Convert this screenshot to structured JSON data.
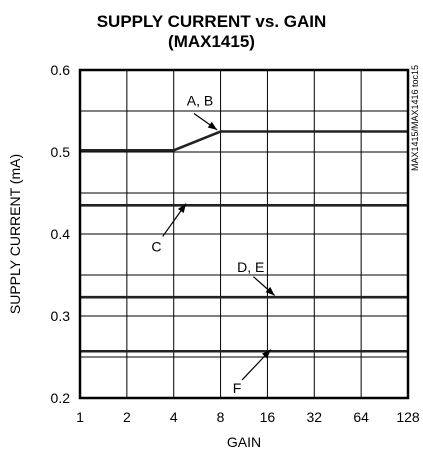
{
  "chart_data": {
    "type": "line",
    "title": "SUPPLY CURRENT vs. GAIN",
    "subtitle": "(MAX1415)",
    "xlabel": "GAIN",
    "ylabel": "SUPPLY CURRENT (mA)",
    "watermark": "MAX1415/MAX1416 toc15",
    "x_scale": "log2",
    "xlim": [
      1,
      128
    ],
    "ylim": [
      0.2,
      0.6
    ],
    "x_ticks": [
      "1",
      "2",
      "4",
      "8",
      "16",
      "32",
      "64",
      "128"
    ],
    "y_ticks": [
      "0.2",
      "0.3",
      "0.4",
      "0.5",
      "0.6"
    ],
    "grid": true,
    "series": [
      {
        "name": "A, B",
        "x": [
          1,
          2,
          4,
          8,
          16,
          32,
          64,
          128
        ],
        "values": [
          0.502,
          0.502,
          0.502,
          0.525,
          0.525,
          0.525,
          0.525,
          0.525
        ]
      },
      {
        "name": "C",
        "x": [
          1,
          2,
          4,
          8,
          16,
          32,
          64,
          128
        ],
        "values": [
          0.435,
          0.435,
          0.435,
          0.435,
          0.435,
          0.435,
          0.435,
          0.435
        ]
      },
      {
        "name": "D, E",
        "x": [
          1,
          2,
          4,
          8,
          16,
          32,
          64,
          128
        ],
        "values": [
          0.323,
          0.323,
          0.323,
          0.323,
          0.323,
          0.323,
          0.323,
          0.323
        ]
      },
      {
        "name": "F",
        "x": [
          1,
          2,
          4,
          8,
          16,
          32,
          64,
          128
        ],
        "values": [
          0.257,
          0.257,
          0.257,
          0.257,
          0.257,
          0.257,
          0.257,
          0.257
        ]
      }
    ]
  }
}
